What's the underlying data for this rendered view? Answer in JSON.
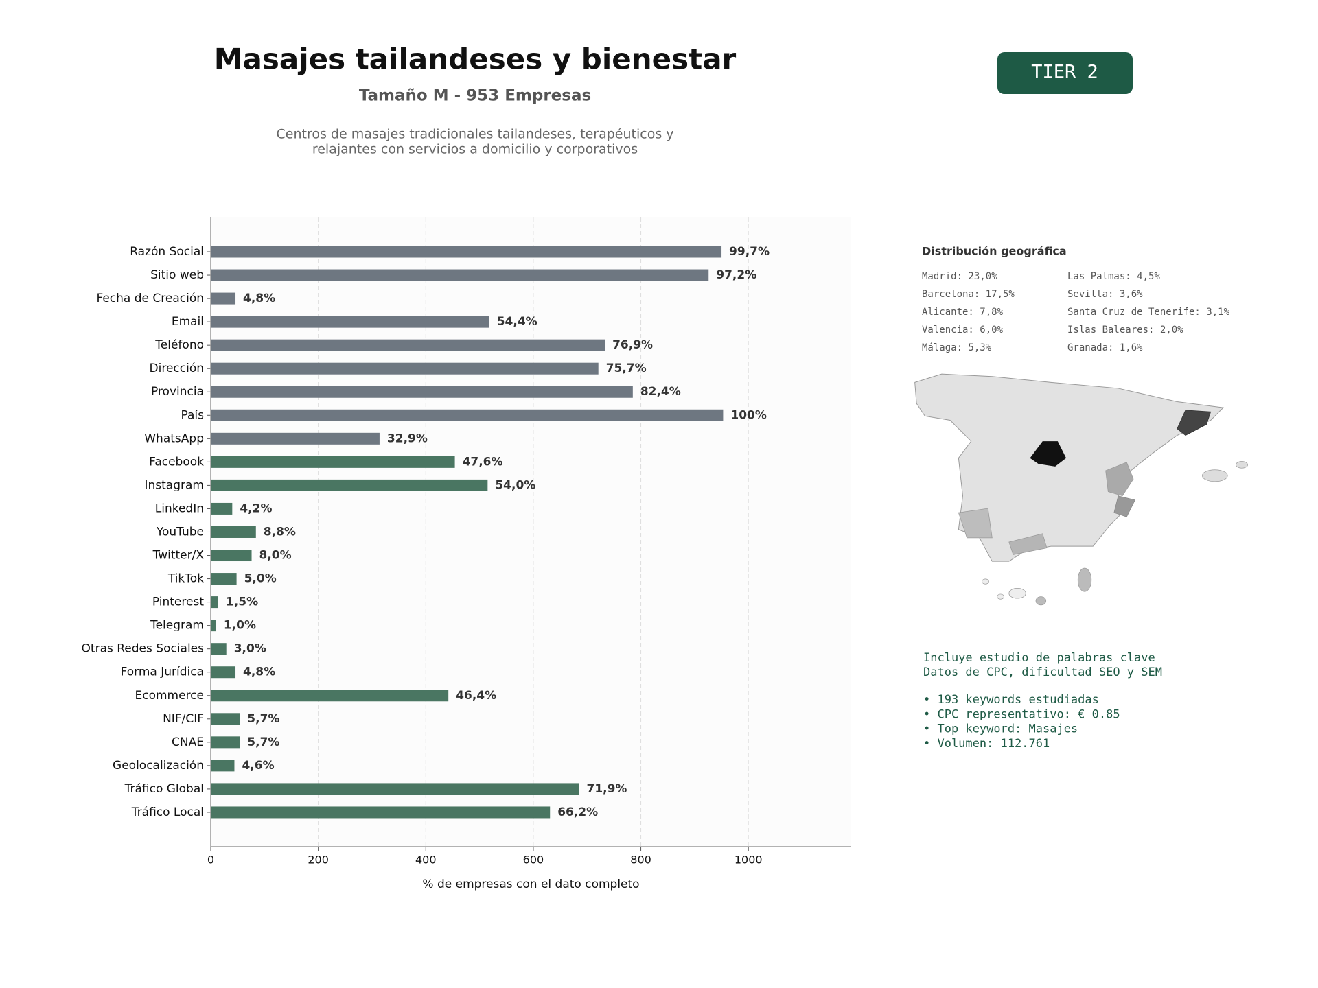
{
  "header": {
    "title": "Masajes tailandeses y bienestar",
    "subtitle": "Tamaño M - 953 Empresas",
    "description": [
      "Centros de masajes tradicionales tailandeses, terapéuticos y",
      "relajantes con servicios a domicilio y corporativos"
    ],
    "badge": "TIER 2"
  },
  "chart_data": {
    "type": "bar",
    "orientation": "horizontal",
    "categories": [
      "Razón Social",
      "Sitio web",
      "Fecha de Creación",
      "Email",
      "Teléfono",
      "Dirección",
      "Provincia",
      "País",
      "WhatsApp",
      "Facebook",
      "Instagram",
      "LinkedIn",
      "YouTube",
      "Twitter/X",
      "TikTok",
      "Pinterest",
      "Telegram",
      "Otras Redes Sociales",
      "Forma Jurídica",
      "Ecommerce",
      "NIF/CIF",
      "CNAE",
      "Geolocalización",
      "Tráfico Global",
      "Tráfico Local"
    ],
    "values": [
      950,
      926,
      46,
      518,
      733,
      721,
      785,
      953,
      314,
      454,
      515,
      40,
      84,
      76,
      48,
      14,
      10,
      29,
      46,
      442,
      54,
      54,
      44,
      685,
      631
    ],
    "value_labels": [
      "99,7%",
      "97,2%",
      "4,8%",
      "54,4%",
      "76,9%",
      "75,7%",
      "82,4%",
      "100%",
      "32,9%",
      "47,6%",
      "54,0%",
      "4,2%",
      "8,8%",
      "8,0%",
      "5,0%",
      "1,5%",
      "1,0%",
      "3,0%",
      "4,8%",
      "46,4%",
      "5,7%",
      "5,7%",
      "4,6%",
      "71,9%",
      "66,2%"
    ],
    "colors": [
      "#6e7781",
      "#6e7781",
      "#6e7781",
      "#6e7781",
      "#6e7781",
      "#6e7781",
      "#6e7781",
      "#6e7781",
      "#6e7781",
      "#4a7662",
      "#4a7662",
      "#4a7662",
      "#4a7662",
      "#4a7662",
      "#4a7662",
      "#4a7662",
      "#4a7662",
      "#4a7662",
      "#4a7662",
      "#4a7662",
      "#4a7662",
      "#4a7662",
      "#4a7662",
      "#4a7662",
      "#4a7662"
    ],
    "xlim": [
      0,
      1191.25
    ],
    "xticks": [
      0,
      200,
      400,
      600,
      800,
      1000
    ],
    "xlabel": "% de empresas con el dato completo",
    "grid": true
  },
  "geo": {
    "title": "Distribución geográfica",
    "items": [
      "Madrid: 23,0%",
      "Barcelona: 17,5%",
      "Alicante: 7,8%",
      "Valencia: 6,0%",
      "Málaga: 5,3%",
      "Las Palmas: 4,5%",
      "Sevilla: 3,6%",
      "Santa Cruz de Tenerife: 3,1%",
      "Islas Baleares: 2,0%",
      "Granada: 1,6%"
    ]
  },
  "keywords": {
    "intro": [
      "Incluye estudio de palabras clave",
      "Datos de CPC, dificultad SEO y SEM"
    ],
    "bullets": [
      "• 193 keywords estudiadas",
      "• CPC representativo: € 0.85",
      "• Top keyword: Masajes",
      "• Volumen: 112.761"
    ]
  }
}
